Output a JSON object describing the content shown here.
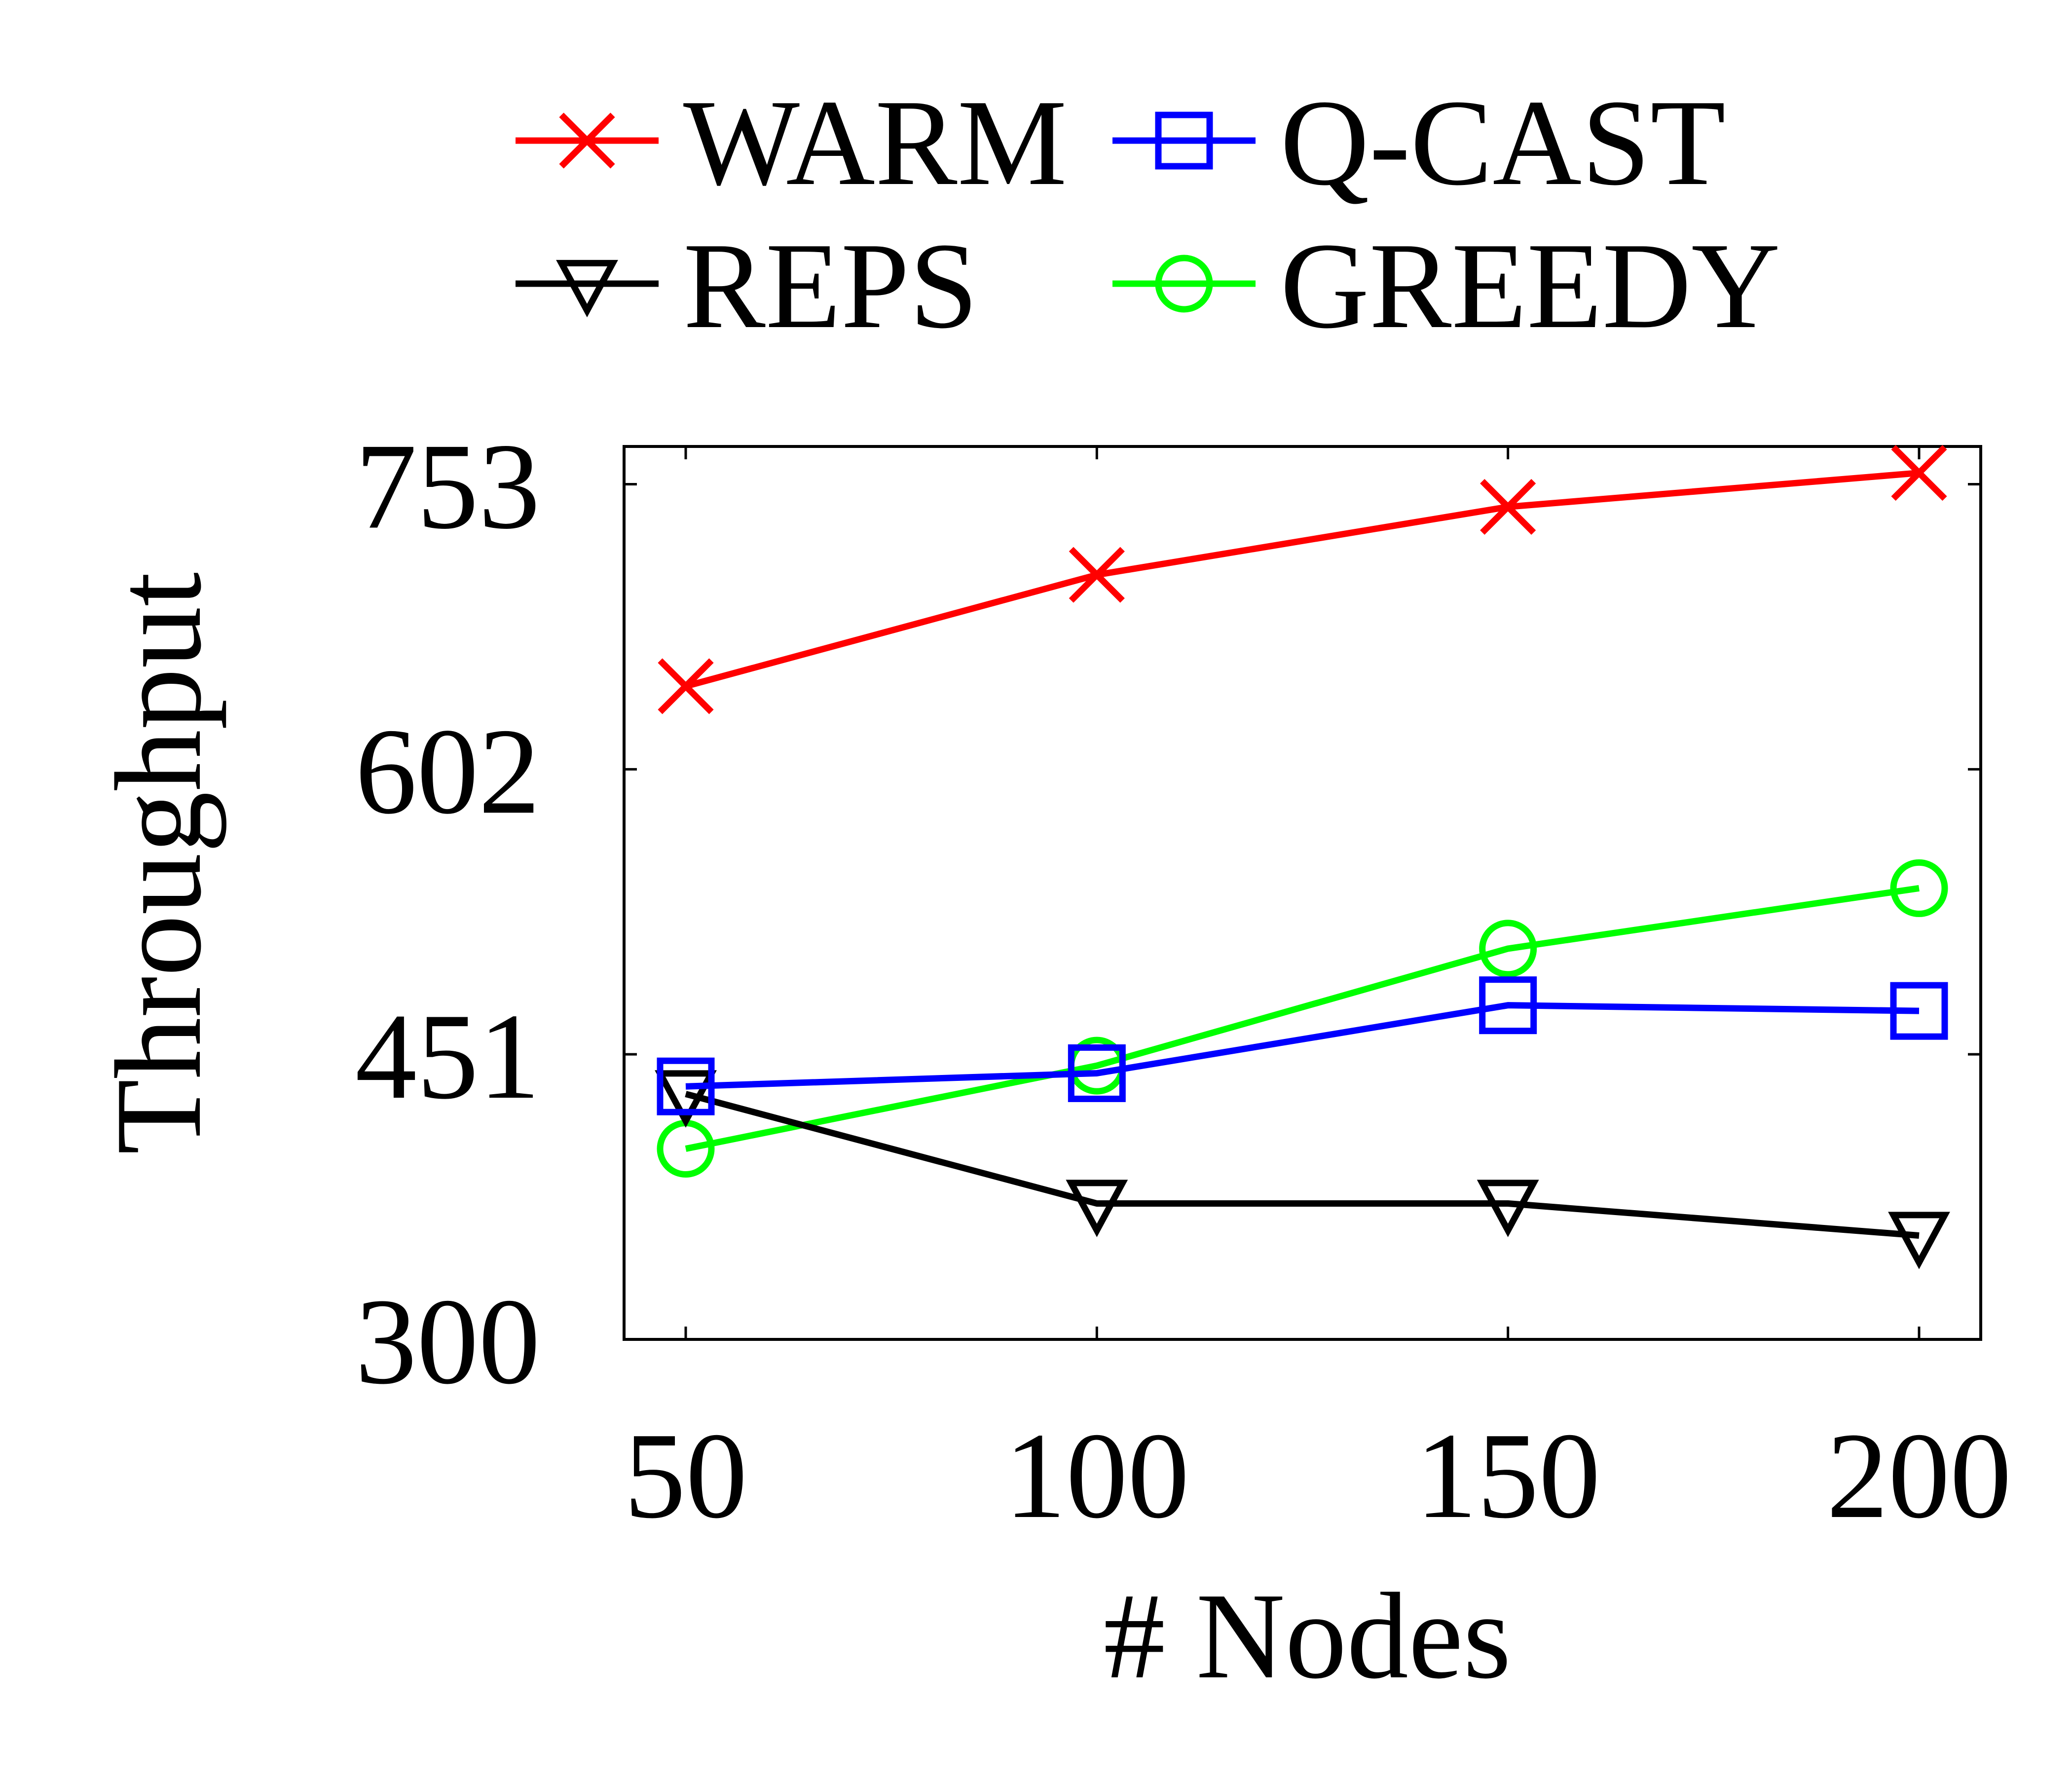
{
  "chart_data": {
    "type": "line",
    "x": [
      50,
      100,
      150,
      200
    ],
    "xlabel": "# Nodes",
    "ylabel": "Throughput",
    "xticks": [
      "50",
      "100",
      "150",
      "200"
    ],
    "yticks": [
      "300",
      "451",
      "602",
      "753"
    ],
    "ytick_values": [
      300,
      451,
      602,
      753
    ],
    "xlim": [
      42.5,
      207.5
    ],
    "ylim": [
      300,
      773
    ],
    "grid": false,
    "legend_position": "top",
    "series": [
      {
        "name": "WARM",
        "color": "#ff0000",
        "marker": "x",
        "values": [
          646,
          705,
          741,
          759
        ]
      },
      {
        "name": "Q-CAST",
        "color": "#0000ff",
        "marker": "square",
        "values": [
          434,
          441,
          477,
          474
        ]
      },
      {
        "name": "REPS",
        "color": "#000000",
        "marker": "triangle-down",
        "values": [
          430,
          372,
          372,
          355
        ]
      },
      {
        "name": "GREEDY",
        "color": "#00ff00",
        "marker": "circle",
        "values": [
          401,
          445,
          507,
          539
        ]
      }
    ]
  }
}
